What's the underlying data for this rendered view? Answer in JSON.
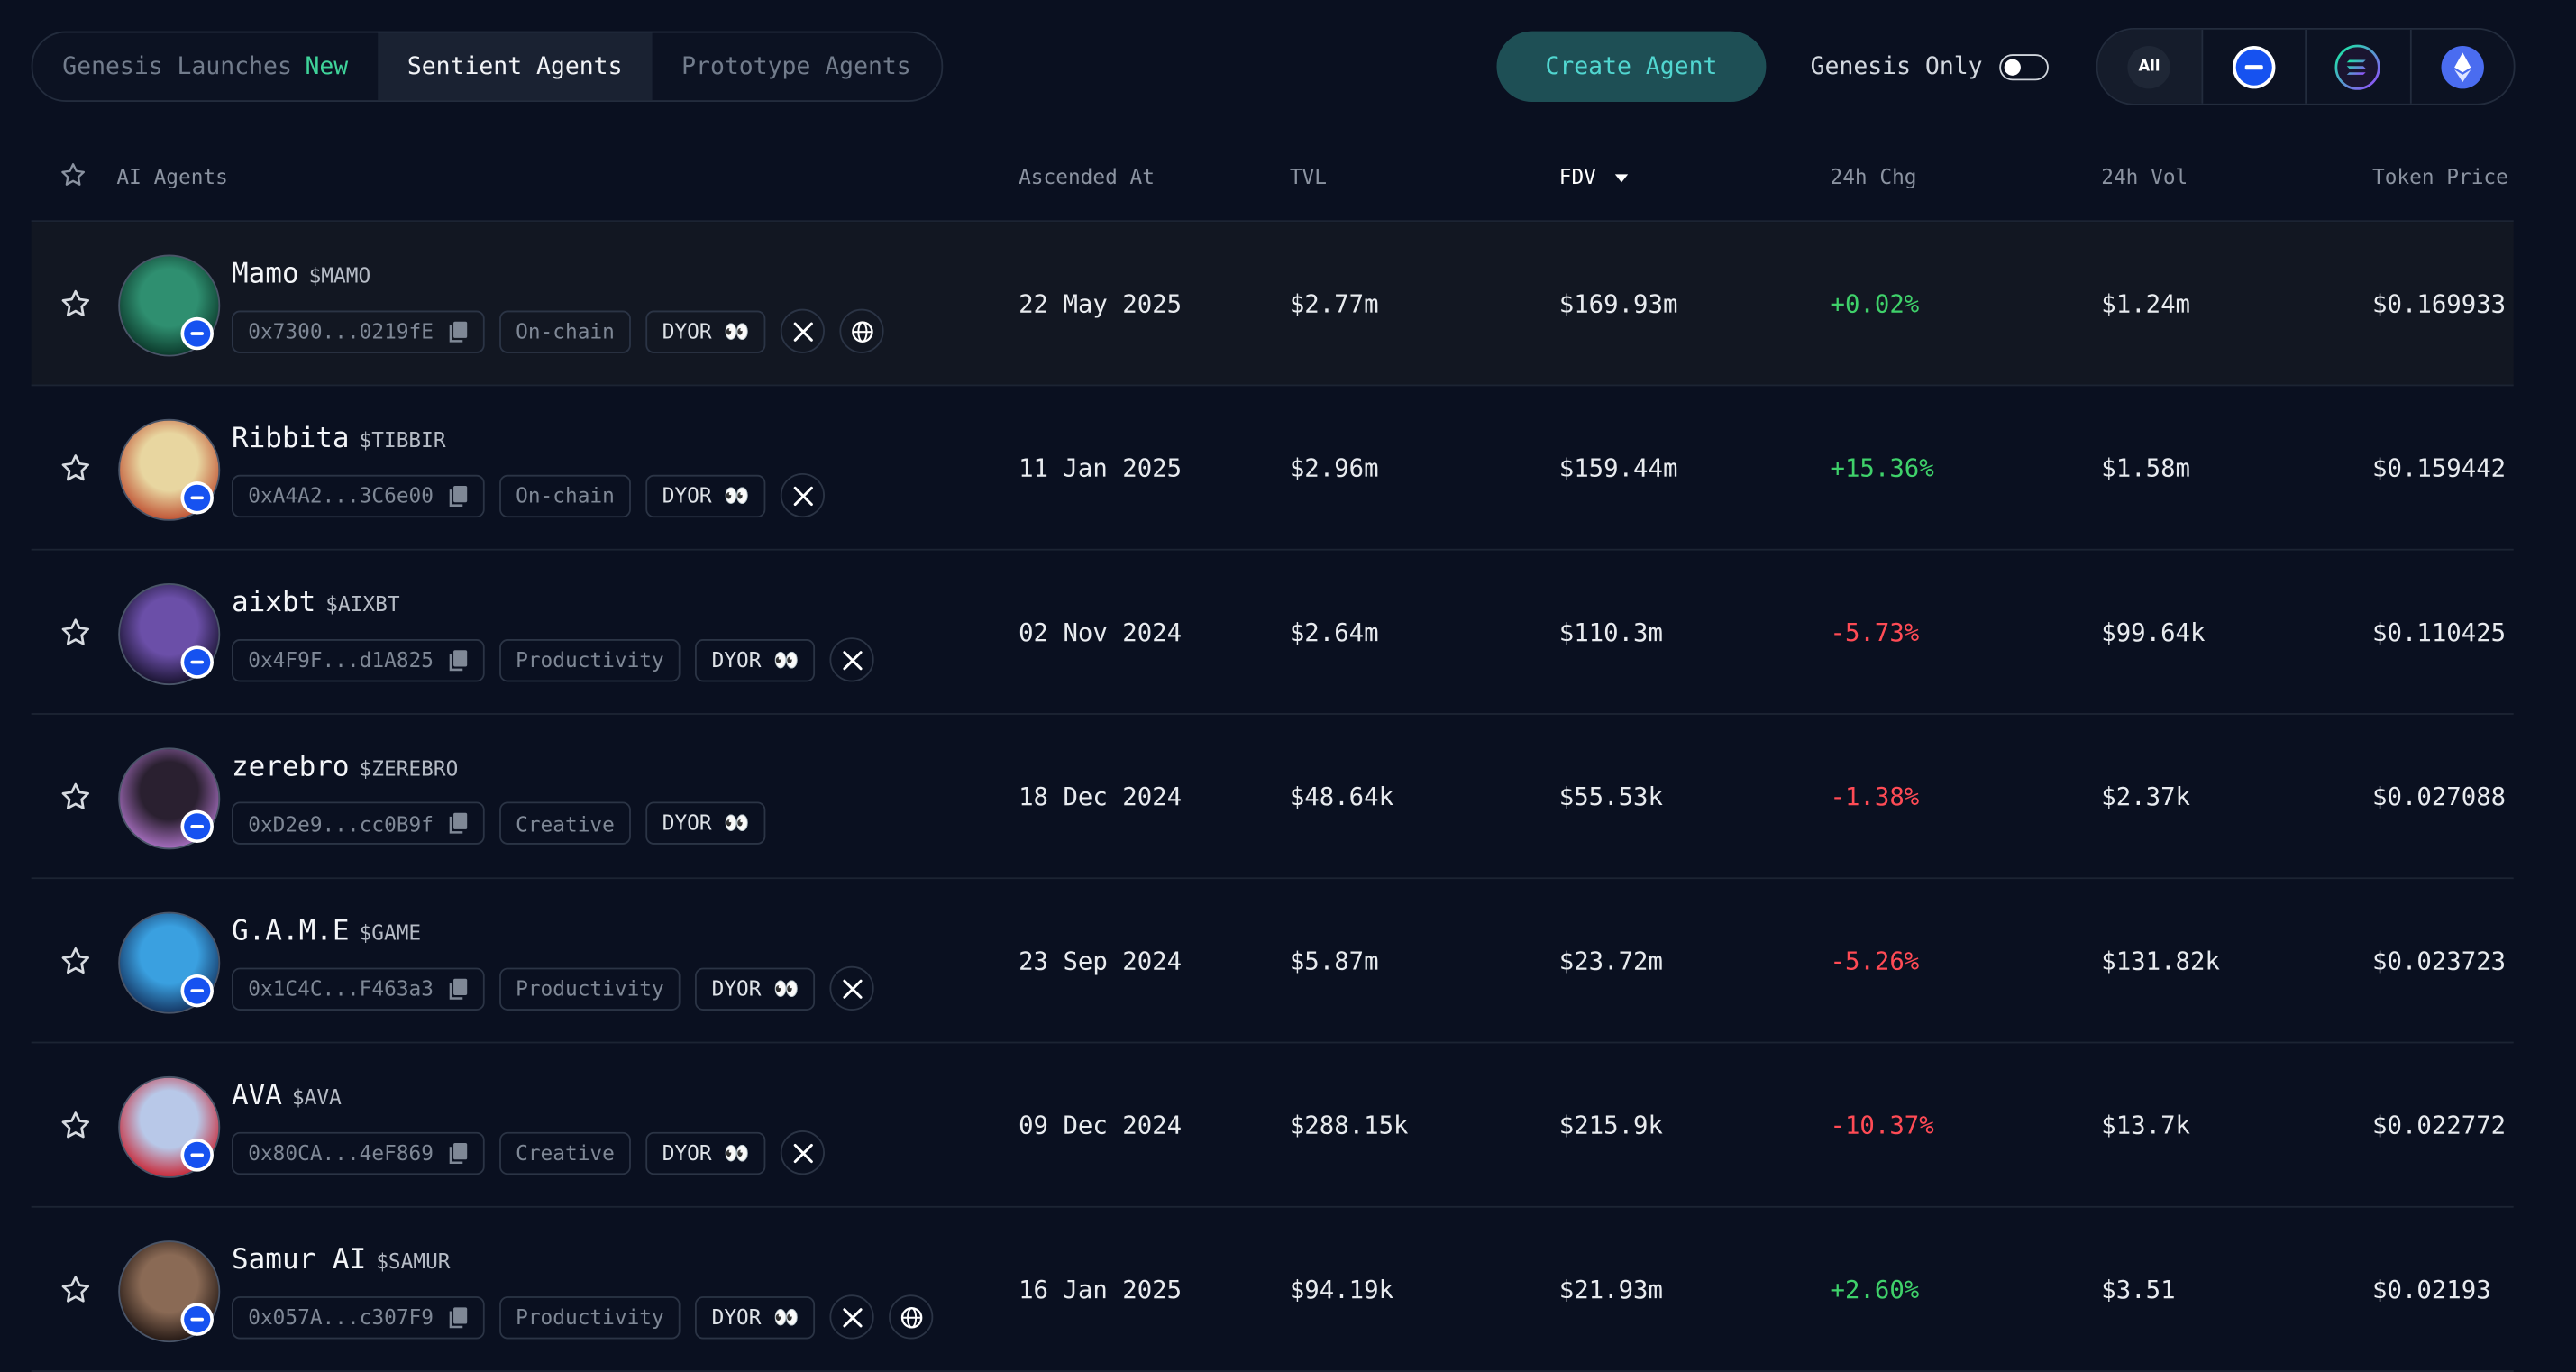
{
  "tabs": [
    {
      "label": "Genesis Launches",
      "badge": "New"
    },
    {
      "label": "Sentient Agents"
    },
    {
      "label": "Prototype Agents"
    }
  ],
  "create_button": "Create Agent",
  "genesis_only_label": "Genesis Only",
  "chain_filter": {
    "all_label": "All",
    "chains": [
      "base-icon",
      "solana-icon",
      "ethereum-icon"
    ]
  },
  "columns": {
    "agents": "AI Agents",
    "ascended": "Ascended At",
    "tvl": "TVL",
    "fdv": "FDV",
    "chg": "24h Chg",
    "vol": "24h Vol",
    "price": "Token Price"
  },
  "colors": {
    "positive": "#3fd16a",
    "negative": "#ff4b55",
    "accent": "#51d6d0",
    "chain_badge": "#1652f0"
  },
  "rows": [
    {
      "name": "Mamo",
      "ticker": "$MAMO",
      "address": "0x7300...0219fE",
      "category": "On-chain",
      "dyor": "DYOR 👀",
      "x": true,
      "web": true,
      "ascended": "22 May 2025",
      "tvl": "$2.77m",
      "fdv": "$169.93m",
      "chg": "+0.02%",
      "vol": "$1.24m",
      "price": "$0.169933"
    },
    {
      "name": "Ribbita",
      "ticker": "$TIBBIR",
      "address": "0xA4A2...3C6e00",
      "category": "On-chain",
      "dyor": "DYOR 👀",
      "x": true,
      "web": false,
      "ascended": "11 Jan 2025",
      "tvl": "$2.96m",
      "fdv": "$159.44m",
      "chg": "+15.36%",
      "vol": "$1.58m",
      "price": "$0.159442"
    },
    {
      "name": "aixbt",
      "ticker": "$AIXBT",
      "address": "0x4F9F...d1A825",
      "category": "Productivity",
      "dyor": "DYOR 👀",
      "x": true,
      "web": false,
      "ascended": "02 Nov 2024",
      "tvl": "$2.64m",
      "fdv": "$110.3m",
      "chg": "-5.73%",
      "vol": "$99.64k",
      "price": "$0.110425"
    },
    {
      "name": "zerebro",
      "ticker": "$ZEREBRO",
      "address": "0xD2e9...cc0B9f",
      "category": "Creative",
      "dyor": "DYOR 👀",
      "x": false,
      "web": false,
      "ascended": "18 Dec 2024",
      "tvl": "$48.64k",
      "fdv": "$55.53k",
      "chg": "-1.38%",
      "vol": "$2.37k",
      "price": "$0.027088"
    },
    {
      "name": "G.A.M.E",
      "ticker": "$GAME",
      "address": "0x1C4C...F463a3",
      "category": "Productivity",
      "dyor": "DYOR 👀",
      "x": true,
      "web": false,
      "ascended": "23 Sep 2024",
      "tvl": "$5.87m",
      "fdv": "$23.72m",
      "chg": "-5.26%",
      "vol": "$131.82k",
      "price": "$0.023723"
    },
    {
      "name": "AVA",
      "ticker": "$AVA",
      "address": "0x80CA...4eF869",
      "category": "Creative",
      "dyor": "DYOR 👀",
      "x": true,
      "web": false,
      "ascended": "09 Dec 2024",
      "tvl": "$288.15k",
      "fdv": "$215.9k",
      "chg": "-10.37%",
      "vol": "$13.7k",
      "price": "$0.022772"
    },
    {
      "name": "Samur AI",
      "ticker": "$SAMUR",
      "address": "0x057A...c307F9",
      "category": "Productivity",
      "dyor": "DYOR 👀",
      "x": true,
      "web": true,
      "ascended": "16 Jan 2025",
      "tvl": "$94.19k",
      "fdv": "$21.93m",
      "chg": "+2.60%",
      "vol": "$3.51",
      "price": "$0.02193"
    }
  ]
}
